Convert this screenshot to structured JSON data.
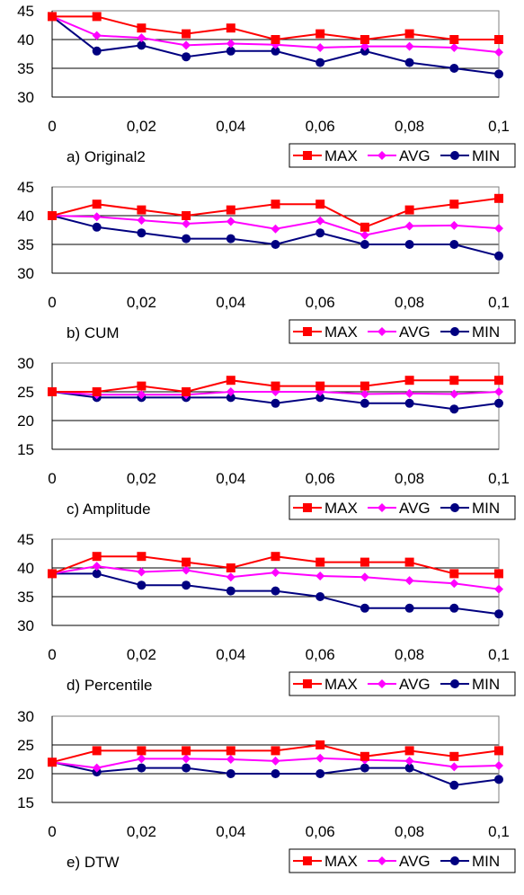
{
  "legend": [
    "MAX",
    "AVG",
    "MIN"
  ],
  "colors": {
    "MAX": "#ff0000",
    "AVG": "#ff00ff",
    "MIN": "#000080"
  },
  "chart_data": [
    {
      "type": "line",
      "caption": "a) Original2",
      "x": [
        0,
        0.01,
        0.02,
        0.03,
        0.04,
        0.05,
        0.06,
        0.07,
        0.08,
        0.09,
        0.1
      ],
      "xticks": [
        "0",
        "0,02",
        "0,04",
        "0,06",
        "0,08",
        "0,1"
      ],
      "ylim": [
        30,
        45
      ],
      "yticks": [
        "45",
        "40",
        "35",
        "30"
      ],
      "grid": true,
      "legend_position": "bottom-right",
      "series": [
        {
          "name": "MAX",
          "values": [
            44,
            44,
            42,
            41,
            42,
            40,
            41,
            40,
            41,
            40,
            40
          ]
        },
        {
          "name": "AVG",
          "values": [
            44,
            40.7,
            40.3,
            39,
            39.3,
            39.1,
            38.6,
            38.8,
            38.8,
            38.6,
            37.8
          ]
        },
        {
          "name": "MIN",
          "values": [
            44,
            38,
            39,
            37,
            38,
            38,
            36,
            38,
            36,
            35,
            34
          ]
        }
      ]
    },
    {
      "type": "line",
      "caption": "b) CUM",
      "x": [
        0,
        0.01,
        0.02,
        0.03,
        0.04,
        0.05,
        0.06,
        0.07,
        0.08,
        0.09,
        0.1
      ],
      "xticks": [
        "0",
        "0,02",
        "0,04",
        "0,06",
        "0,08",
        "0,1"
      ],
      "ylim": [
        30,
        45
      ],
      "yticks": [
        "45",
        "40",
        "35",
        "30"
      ],
      "grid": true,
      "legend_position": "bottom-right",
      "series": [
        {
          "name": "MAX",
          "values": [
            40,
            42,
            41,
            40,
            41,
            42,
            42,
            38,
            41,
            42,
            43
          ]
        },
        {
          "name": "AVG",
          "values": [
            40,
            39.8,
            39.2,
            38.6,
            39,
            37.7,
            39.1,
            36.6,
            38.2,
            38.3,
            37.8
          ]
        },
        {
          "name": "MIN",
          "values": [
            40,
            38,
            37,
            36,
            36,
            35,
            37,
            35,
            35,
            35,
            33
          ]
        }
      ]
    },
    {
      "type": "line",
      "caption": "c) Amplitude",
      "x": [
        0,
        0.01,
        0.02,
        0.03,
        0.04,
        0.05,
        0.06,
        0.07,
        0.08,
        0.09,
        0.1
      ],
      "xticks": [
        "0",
        "0,02",
        "0,04",
        "0,06",
        "0,08",
        "0,1"
      ],
      "ylim": [
        15,
        30
      ],
      "yticks": [
        "30",
        "25",
        "20",
        "15"
      ],
      "grid": true,
      "legend_position": "bottom-right",
      "series": [
        {
          "name": "MAX",
          "values": [
            25,
            25,
            26,
            25,
            27,
            26,
            26,
            26,
            27,
            27,
            27
          ]
        },
        {
          "name": "AVG",
          "values": [
            25,
            24.5,
            24.5,
            24.5,
            25,
            25,
            25,
            24.6,
            24.7,
            24.6,
            25
          ]
        },
        {
          "name": "MIN",
          "values": [
            25,
            24,
            24,
            24,
            24,
            23,
            24,
            23,
            23,
            22,
            23
          ]
        }
      ]
    },
    {
      "type": "line",
      "caption": "d) Percentile",
      "x": [
        0,
        0.01,
        0.02,
        0.03,
        0.04,
        0.05,
        0.06,
        0.07,
        0.08,
        0.09,
        0.1
      ],
      "xticks": [
        "0",
        "0,02",
        "0,04",
        "0,06",
        "0,08",
        "0,1"
      ],
      "ylim": [
        30,
        45
      ],
      "yticks": [
        "45",
        "40",
        "35",
        "30"
      ],
      "grid": true,
      "legend_position": "bottom-right",
      "series": [
        {
          "name": "MAX",
          "values": [
            39,
            42,
            42,
            41,
            40,
            42,
            41,
            41,
            41,
            39,
            39
          ]
        },
        {
          "name": "AVG",
          "values": [
            39,
            40.3,
            39.3,
            39.6,
            38.4,
            39.2,
            38.6,
            38.4,
            37.8,
            37.3,
            36.3
          ]
        },
        {
          "name": "MIN",
          "values": [
            39,
            39,
            37,
            37,
            36,
            36,
            35,
            33,
            33,
            33,
            32
          ]
        }
      ]
    },
    {
      "type": "line",
      "caption": "e) DTW",
      "x": [
        0,
        0.01,
        0.02,
        0.03,
        0.04,
        0.05,
        0.06,
        0.07,
        0.08,
        0.09,
        0.1
      ],
      "xticks": [
        "0",
        "0,02",
        "0,04",
        "0,06",
        "0,08",
        "0,1"
      ],
      "ylim": [
        15,
        30
      ],
      "yticks": [
        "30",
        "25",
        "20",
        "15"
      ],
      "grid": true,
      "legend_position": "bottom-right",
      "series": [
        {
          "name": "MAX",
          "values": [
            22,
            24,
            24,
            24,
            24,
            24,
            25,
            23,
            24,
            23,
            24
          ]
        },
        {
          "name": "AVG",
          "values": [
            22,
            21,
            22.6,
            22.6,
            22.5,
            22.2,
            22.7,
            22.4,
            22.2,
            21.2,
            21.4
          ]
        },
        {
          "name": "MIN",
          "values": [
            22,
            20.3,
            21,
            21,
            20,
            20,
            20,
            21,
            21,
            18,
            19
          ]
        }
      ]
    }
  ]
}
